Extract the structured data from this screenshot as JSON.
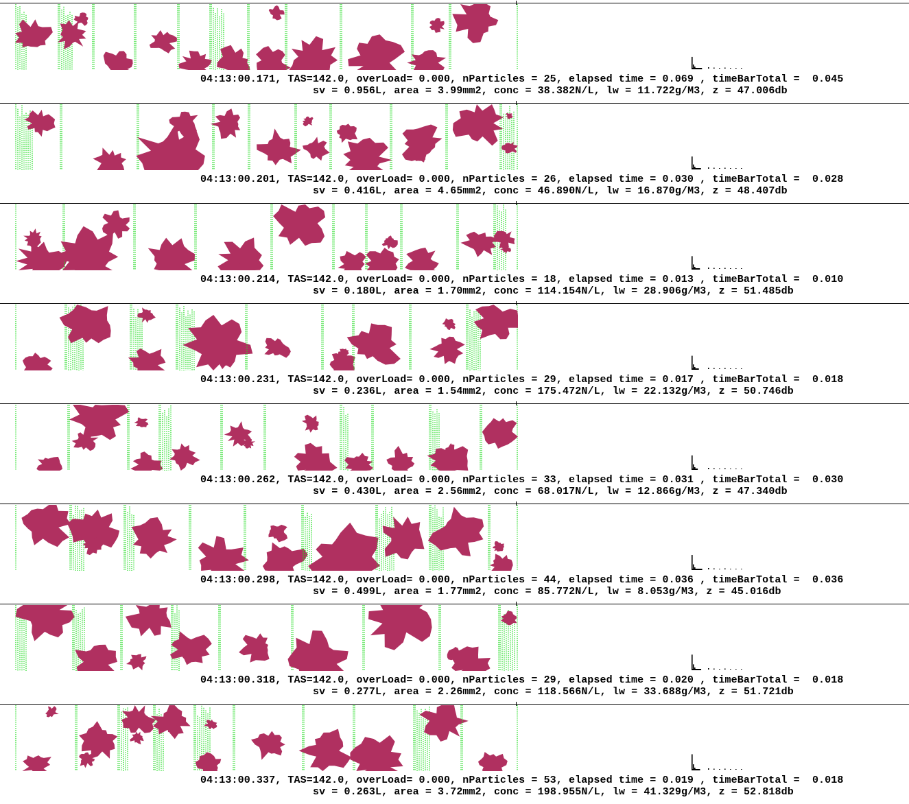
{
  "colors": {
    "particle": "#b03060",
    "slice_marks": "#22dd22",
    "text": "#000000",
    "background": "#ffffff"
  },
  "frames": [
    {
      "info_line": "04:13:00.171, TAS=142.0, overLoad= 0.000, nParticles = 25, elapsed time = 0.069 , timeBarTotal =  0.045",
      "stats_line": "sv = 0.956L, area = 3.99mm2, conc = 38.382N/L, lw = 11.722g/M3, z = 47.006db"
    },
    {
      "info_line": "04:13:00.201, TAS=142.0, overLoad= 0.000, nParticles = 26, elapsed time = 0.030 , timeBarTotal =  0.028",
      "stats_line": "sv = 0.416L, area = 4.65mm2, conc = 46.890N/L, lw = 16.870g/M3, z = 48.407db"
    },
    {
      "info_line": "04:13:00.214, TAS=142.0, overLoad= 0.000, nParticles = 18, elapsed time = 0.013 , timeBarTotal =  0.010",
      "stats_line": "sv = 0.180L, area = 1.70mm2, conc = 114.154N/L, lw = 28.906g/M3, z = 51.485db"
    },
    {
      "info_line": "04:13:00.231, TAS=142.0, overLoad= 0.000, nParticles = 29, elapsed time = 0.017 , timeBarTotal =  0.018",
      "stats_line": "sv = 0.236L, area = 1.54mm2, conc = 175.472N/L, lw = 22.132g/M3, z = 50.746db"
    },
    {
      "info_line": "04:13:00.262, TAS=142.0, overLoad= 0.000, nParticles = 33, elapsed time = 0.031 , timeBarTotal =  0.030",
      "stats_line": "sv = 0.430L, area = 2.56mm2, conc = 68.017N/L, lw = 12.866g/M3, z = 47.340db"
    },
    {
      "info_line": "04:13:00.298, TAS=142.0, overLoad= 0.000, nParticles = 44, elapsed time = 0.036 , timeBarTotal =  0.036",
      "stats_line": "sv = 0.499L, area = 1.77mm2, conc = 85.772N/L, lw = 8.053g/M3, z = 45.016db"
    },
    {
      "info_line": "04:13:00.318, TAS=142.0, overLoad= 0.000, nParticles = 29, elapsed time = 0.020 , timeBarTotal =  0.018",
      "stats_line": "sv = 0.277L, area = 2.26mm2, conc = 118.566N/L, lw = 33.688g/M3, z = 51.721db"
    },
    {
      "info_line": "04:13:00.337, TAS=142.0, overLoad= 0.000, nParticles = 53, elapsed time = 0.019 , timeBarTotal =  0.018",
      "stats_line": "sv = 0.263L, area = 3.72mm2, conc = 198.955N/L, lw = 41.329g/M3, z = 52.818db"
    }
  ]
}
